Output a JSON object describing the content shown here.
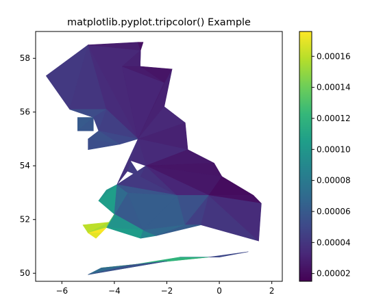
{
  "chart_data": {
    "type": "tripcolor",
    "title": "matplotlib.pyplot.tripcolor() Example",
    "xlabel": "",
    "ylabel": "",
    "xlim": [
      -7,
      2.4
    ],
    "ylim": [
      49.7,
      59.0
    ],
    "xticks": [
      -6,
      -4,
      -2,
      0,
      2
    ],
    "xtick_labels": [
      "−6",
      "−4",
      "−2",
      "0",
      "2"
    ],
    "yticks": [
      50,
      52,
      54,
      56,
      58
    ],
    "ytick_labels": [
      "50",
      "52",
      "54",
      "56",
      "58"
    ],
    "grid": false,
    "colormap": "viridis",
    "colorbar": {
      "min": 1.5e-05,
      "max": 0.000176,
      "ticks": [
        2e-05,
        4e-05,
        6e-05,
        8e-05,
        0.0001,
        0.00012,
        0.00014,
        0.00016
      ],
      "tick_labels": [
        "0.00002",
        "0.00004",
        "0.00006",
        "0.00008",
        "0.00010",
        "0.00012",
        "0.00014",
        "0.00016"
      ]
    },
    "triangles": [
      {
        "pts": [
          [
            -5.0,
            58.5
          ],
          [
            -6.6,
            57.35
          ],
          [
            -5.7,
            56.1
          ]
        ],
        "value": 4.2e-05
      },
      {
        "pts": [
          [
            -5.0,
            58.5
          ],
          [
            -5.7,
            56.1
          ],
          [
            -4.3,
            56.1
          ]
        ],
        "value": 4e-05
      },
      {
        "pts": [
          [
            -5.0,
            58.5
          ],
          [
            -4.3,
            56.1
          ],
          [
            -3.1,
            55.0
          ]
        ],
        "value": 3.5e-05
      },
      {
        "pts": [
          [
            -5.0,
            58.5
          ],
          [
            -3.1,
            55.0
          ],
          [
            -3.0,
            58.3
          ]
        ],
        "value": 3.3e-05
      },
      {
        "pts": [
          [
            -5.0,
            58.5
          ],
          [
            -3.0,
            58.3
          ],
          [
            -3.1,
            58.6
          ]
        ],
        "value": 2.8e-05
      },
      {
        "pts": [
          [
            -3.1,
            58.6
          ],
          [
            -3.0,
            58.3
          ],
          [
            -2.9,
            58.6
          ]
        ],
        "value": 2.2e-05
      },
      {
        "pts": [
          [
            -3.0,
            58.3
          ],
          [
            -3.1,
            55.0
          ],
          [
            -3.7,
            57.7
          ]
        ],
        "value": 3e-05
      },
      {
        "pts": [
          [
            -5.7,
            56.1
          ],
          [
            -4.3,
            56.1
          ],
          [
            -4.8,
            55.8
          ]
        ],
        "value": 5.2e-05
      },
      {
        "pts": [
          [
            -5.4,
            55.8
          ],
          [
            -4.8,
            55.8
          ],
          [
            -5.4,
            55.3
          ]
        ],
        "value": 6e-05
      },
      {
        "pts": [
          [
            -5.4,
            55.3
          ],
          [
            -4.8,
            55.8
          ],
          [
            -4.8,
            55.3
          ]
        ],
        "value": 5.8e-05
      },
      {
        "pts": [
          [
            -4.3,
            56.1
          ],
          [
            -4.8,
            55.8
          ],
          [
            -4.6,
            55.3
          ]
        ],
        "value": 4.8e-05
      },
      {
        "pts": [
          [
            -4.3,
            56.1
          ],
          [
            -4.6,
            55.3
          ],
          [
            -3.1,
            55.0
          ]
        ],
        "value": 4.5e-05
      },
      {
        "pts": [
          [
            -4.6,
            55.3
          ],
          [
            -3.8,
            54.8
          ],
          [
            -3.1,
            55.0
          ]
        ],
        "value": 5e-05
      },
      {
        "pts": [
          [
            -5.0,
            55.0
          ],
          [
            -4.6,
            55.3
          ],
          [
            -3.8,
            54.8
          ]
        ],
        "value": 5.5e-05
      },
      {
        "pts": [
          [
            -5.0,
            55.0
          ],
          [
            -3.8,
            54.8
          ],
          [
            -5.0,
            54.6
          ]
        ],
        "value": 5.3e-05
      },
      {
        "pts": [
          [
            -3.1,
            55.0
          ],
          [
            -3.7,
            57.7
          ],
          [
            -2.1,
            57.1
          ]
        ],
        "value": 3.2e-05
      },
      {
        "pts": [
          [
            -3.1,
            55.0
          ],
          [
            -2.1,
            57.1
          ],
          [
            -1.8,
            57.6
          ]
        ],
        "value": 2.8e-05
      },
      {
        "pts": [
          [
            -3.7,
            57.7
          ],
          [
            -3.0,
            57.7
          ],
          [
            -2.1,
            57.1
          ]
        ],
        "value": 2.7e-05
      },
      {
        "pts": [
          [
            -3.0,
            57.7
          ],
          [
            -1.8,
            57.6
          ],
          [
            -2.1,
            57.1
          ]
        ],
        "value": 2.4e-05
      },
      {
        "pts": [
          [
            -3.1,
            55.0
          ],
          [
            -1.8,
            57.6
          ],
          [
            -2.1,
            56.2
          ]
        ],
        "value": 3e-05
      },
      {
        "pts": [
          [
            -3.1,
            55.0
          ],
          [
            -2.1,
            56.2
          ],
          [
            -1.3,
            55.6
          ]
        ],
        "value": 3.3e-05
      },
      {
        "pts": [
          [
            -3.1,
            55.0
          ],
          [
            -1.3,
            55.6
          ],
          [
            -1.2,
            54.6
          ]
        ],
        "value": 3e-05
      },
      {
        "pts": [
          [
            -3.1,
            55.0
          ],
          [
            -1.2,
            54.6
          ],
          [
            -2.8,
            54.0
          ]
        ],
        "value": 3.4e-05
      },
      {
        "pts": [
          [
            -1.2,
            54.6
          ],
          [
            -0.2,
            54.1
          ],
          [
            -2.8,
            54.0
          ]
        ],
        "value": 2.6e-05
      },
      {
        "pts": [
          [
            -0.2,
            54.1
          ],
          [
            0.1,
            53.6
          ],
          [
            -2.8,
            54.0
          ]
        ],
        "value": 2.4e-05
      },
      {
        "pts": [
          [
            0.1,
            53.6
          ],
          [
            -0.4,
            52.9
          ],
          [
            -2.8,
            54.0
          ]
        ],
        "value": 2.5e-05
      },
      {
        "pts": [
          [
            -0.4,
            52.9
          ],
          [
            1.3,
            52.9
          ],
          [
            0.1,
            53.6
          ]
        ],
        "value": 2e-05
      },
      {
        "pts": [
          [
            -0.4,
            52.9
          ],
          [
            1.3,
            52.9
          ],
          [
            1.6,
            52.6
          ]
        ],
        "value": 2.2e-05
      },
      {
        "pts": [
          [
            -3.1,
            55.0
          ],
          [
            -2.8,
            54.0
          ],
          [
            -3.4,
            54.2
          ]
        ],
        "value": 3.6e-05
      },
      {
        "pts": [
          [
            -3.1,
            55.0
          ],
          [
            -3.4,
            54.2
          ],
          [
            -3.5,
            53.8
          ]
        ],
        "value": 4e-05
      },
      {
        "pts": [
          [
            -3.5,
            53.8
          ],
          [
            -3.4,
            54.2
          ],
          [
            -3.0,
            53.6
          ]
        ],
        "value": 4.3e-05
      },
      {
        "pts": [
          [
            -3.1,
            55.0
          ],
          [
            -3.9,
            53.3
          ],
          [
            -3.5,
            53.8
          ]
        ],
        "value": 3.8e-05
      },
      {
        "pts": [
          [
            -3.9,
            53.3
          ],
          [
            -3.0,
            53.6
          ],
          [
            -2.8,
            54.0
          ]
        ],
        "value": 4.7e-05
      },
      {
        "pts": [
          [
            -3.9,
            53.3
          ],
          [
            -2.8,
            54.0
          ],
          [
            -1.6,
            52.9
          ]
        ],
        "value": 4.2e-05
      },
      {
        "pts": [
          [
            -3.0,
            53.6
          ],
          [
            -1.6,
            52.9
          ],
          [
            -2.8,
            54.0
          ]
        ],
        "value": 3.8e-05
      },
      {
        "pts": [
          [
            -1.6,
            52.9
          ],
          [
            -0.4,
            52.9
          ],
          [
            -2.8,
            54.0
          ]
        ],
        "value": 3.2e-05
      },
      {
        "pts": [
          [
            -3.9,
            53.3
          ],
          [
            -4.6,
            52.7
          ],
          [
            -4.0,
            52.2
          ]
        ],
        "value": 0.000105
      },
      {
        "pts": [
          [
            -4.3,
            53.1
          ],
          [
            -3.9,
            53.3
          ],
          [
            -4.6,
            52.7
          ]
        ],
        "value": 0.0001
      },
      {
        "pts": [
          [
            -3.9,
            53.3
          ],
          [
            -4.0,
            52.2
          ],
          [
            -3.5,
            53.0
          ]
        ],
        "value": 7e-05
      },
      {
        "pts": [
          [
            -3.5,
            53.0
          ],
          [
            -4.0,
            52.2
          ],
          [
            -2.9,
            51.6
          ]
        ],
        "value": 6e-05
      },
      {
        "pts": [
          [
            -3.5,
            53.0
          ],
          [
            -2.9,
            51.6
          ],
          [
            -1.6,
            52.9
          ]
        ],
        "value": 6.2e-05
      },
      {
        "pts": [
          [
            -3.9,
            53.3
          ],
          [
            -3.5,
            53.0
          ],
          [
            -1.6,
            52.9
          ]
        ],
        "value": 5.7e-05
      },
      {
        "pts": [
          [
            -1.6,
            52.9
          ],
          [
            -2.9,
            51.6
          ],
          [
            -1.3,
            51.8
          ]
        ],
        "value": 6.2e-05
      },
      {
        "pts": [
          [
            -1.6,
            52.9
          ],
          [
            -1.3,
            51.8
          ],
          [
            -0.4,
            52.9
          ]
        ],
        "value": 5.5e-05
      },
      {
        "pts": [
          [
            -0.4,
            52.9
          ],
          [
            -1.3,
            51.8
          ],
          [
            -0.7,
            51.8
          ]
        ],
        "value": 4.5e-05
      },
      {
        "pts": [
          [
            -0.7,
            51.8
          ],
          [
            1.5,
            51.2
          ],
          [
            -0.4,
            52.9
          ]
        ],
        "value": 4e-05
      },
      {
        "pts": [
          [
            -0.4,
            52.9
          ],
          [
            1.6,
            52.6
          ],
          [
            1.5,
            51.2
          ]
        ],
        "value": 3.5e-05
      },
      {
        "pts": [
          [
            -4.0,
            52.2
          ],
          [
            -4.3,
            51.7
          ],
          [
            -2.9,
            51.6
          ]
        ],
        "value": 9.8e-05
      },
      {
        "pts": [
          [
            -4.3,
            51.7
          ],
          [
            -3.0,
            51.3
          ],
          [
            -2.9,
            51.6
          ]
        ],
        "value": 0.000104
      },
      {
        "pts": [
          [
            -2.9,
            51.6
          ],
          [
            -3.0,
            51.3
          ],
          [
            -2.4,
            51.4
          ]
        ],
        "value": 8.8e-05
      },
      {
        "pts": [
          [
            -2.9,
            51.6
          ],
          [
            -2.4,
            51.4
          ],
          [
            -1.3,
            51.8
          ]
        ],
        "value": 6.8e-05
      },
      {
        "pts": [
          [
            -2.4,
            51.4
          ],
          [
            -0.7,
            51.8
          ],
          [
            -1.3,
            51.8
          ]
        ],
        "value": 6.2e-05
      },
      {
        "pts": [
          [
            -4.0,
            52.2
          ],
          [
            -3.5,
            53.0
          ],
          [
            -4.3,
            51.7
          ]
        ],
        "value": 7.8e-05
      },
      {
        "pts": [
          [
            -5.2,
            51.8
          ],
          [
            -4.2,
            51.9
          ],
          [
            -5.0,
            51.5
          ]
        ],
        "value": 0.00016
      },
      {
        "pts": [
          [
            -5.0,
            51.5
          ],
          [
            -4.2,
            51.9
          ],
          [
            -4.3,
            51.7
          ]
        ],
        "value": 0.000155
      },
      {
        "pts": [
          [
            -5.0,
            51.5
          ],
          [
            -4.3,
            51.7
          ],
          [
            -4.5,
            51.5
          ]
        ],
        "value": 0.000175
      },
      {
        "pts": [
          [
            -5.0,
            51.5
          ],
          [
            -4.5,
            51.5
          ],
          [
            -4.7,
            51.3
          ]
        ],
        "value": 0.00017
      },
      {
        "pts": [
          [
            -4.2,
            51.9
          ],
          [
            -4.0,
            52.2
          ],
          [
            -4.3,
            51.7
          ]
        ],
        "value": 0.000135
      },
      {
        "pts": [
          [
            -4.5,
            50.2
          ],
          [
            -3.4,
            50.3
          ],
          [
            -2.0,
            50.45
          ]
        ],
        "value": 0.000165
      },
      {
        "pts": [
          [
            -4.5,
            50.2
          ],
          [
            -2.0,
            50.45
          ],
          [
            -0.4,
            50.6
          ]
        ],
        "value": 0.00014
      },
      {
        "pts": [
          [
            -3.4,
            50.3
          ],
          [
            -1.5,
            50.6
          ],
          [
            -0.4,
            50.6
          ]
        ],
        "value": 0.00012
      },
      {
        "pts": [
          [
            -1.5,
            50.6
          ],
          [
            0.0,
            50.6
          ],
          [
            -0.4,
            50.6
          ]
        ],
        "value": 8.5e-05
      },
      {
        "pts": [
          [
            -0.4,
            50.6
          ],
          [
            0.0,
            50.6
          ],
          [
            1.1,
            50.8
          ]
        ],
        "value": 5e-05
      },
      {
        "pts": [
          [
            -5.0,
            49.95
          ],
          [
            -4.5,
            50.2
          ],
          [
            -2.0,
            50.45
          ]
        ],
        "value": 7e-05
      },
      {
        "pts": [
          [
            -5.0,
            49.95
          ],
          [
            -2.0,
            50.45
          ],
          [
            -3.4,
            50.3
          ]
        ],
        "value": 5.5e-05
      }
    ]
  }
}
